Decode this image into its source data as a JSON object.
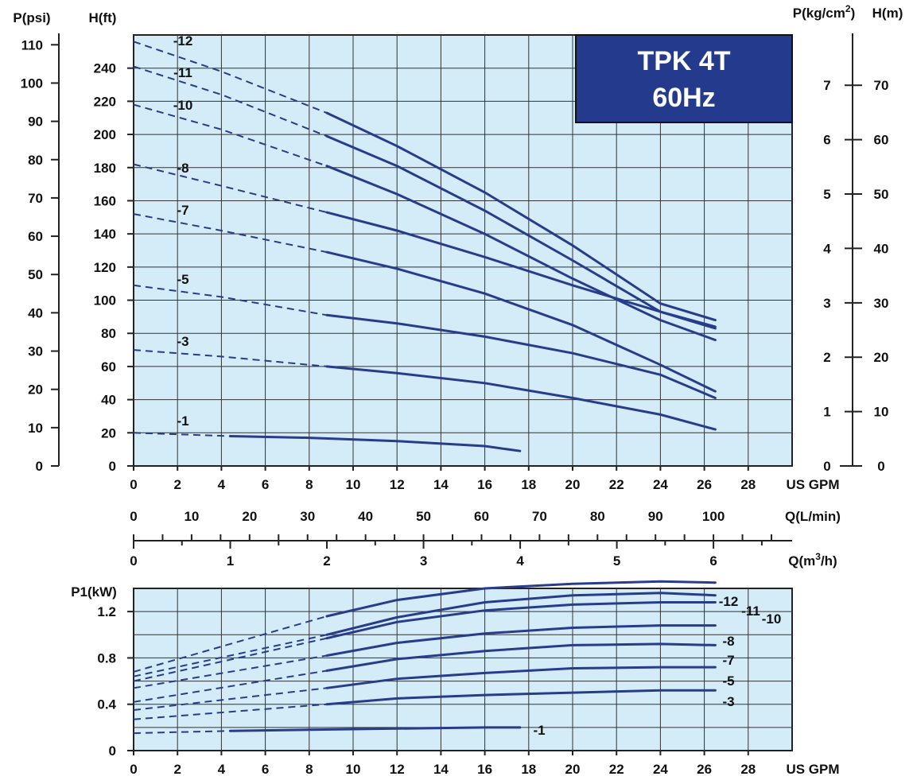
{
  "chart_data": [
    {
      "type": "line",
      "title": "TPK 4T 60Hz",
      "title_lines": [
        "TPK 4T",
        "60Hz"
      ],
      "colors": {
        "curve": "#283c8c",
        "plot_bg": "#d3ecf8",
        "title_box": "#233a8d",
        "title_text": "#ffffff"
      },
      "grid": true,
      "xlim": [
        0,
        30
      ],
      "ylim": [
        0,
        260
      ],
      "x_axes": [
        {
          "label": "US GPM",
          "ticks": [
            0,
            2,
            4,
            6,
            8,
            10,
            12,
            14,
            16,
            18,
            20,
            22,
            24,
            26,
            28
          ]
        },
        {
          "label": "Q(L/min)",
          "ticks": [
            0,
            10,
            20,
            30,
            40,
            50,
            60,
            70,
            80,
            90,
            100
          ]
        },
        {
          "label_main": "Q(m",
          "label_sup": "3",
          "label_end": "/h)",
          "ticks": [
            0,
            1,
            2,
            3,
            4,
            5,
            6
          ]
        }
      ],
      "y_axes": [
        {
          "label": "P(psi)",
          "ticks": [
            0,
            10,
            20,
            30,
            40,
            50,
            60,
            70,
            80,
            90,
            100,
            110
          ]
        },
        {
          "label": "H(ft)",
          "ticks": [
            0,
            20,
            40,
            60,
            80,
            100,
            120,
            140,
            160,
            180,
            200,
            220,
            240
          ]
        },
        {
          "label_main": "P(kg/cm",
          "label_sup": "2",
          "label_end": ")",
          "ticks": [
            0,
            1,
            2,
            3,
            4,
            5,
            6,
            7
          ]
        },
        {
          "label": "H(m)",
          "ticks": [
            0,
            10,
            20,
            30,
            40,
            50,
            60,
            70
          ]
        }
      ],
      "series": [
        {
          "name": "-12",
          "dashed_until": 8.8,
          "x": [
            0,
            4,
            8.8,
            12,
            16,
            20,
            24,
            26.5
          ],
          "y": [
            256,
            238,
            213,
            193,
            165,
            133,
            98,
            88
          ]
        },
        {
          "name": "-11",
          "dashed_until": 8.8,
          "x": [
            0,
            4,
            8.8,
            12,
            16,
            20,
            24,
            26.5
          ],
          "y": [
            241,
            224,
            199,
            181,
            154,
            124,
            93,
            83
          ]
        },
        {
          "name": "-10",
          "dashed_until": 8.8,
          "x": [
            0,
            4,
            8.8,
            12,
            16,
            20,
            24,
            26.5
          ],
          "y": [
            218,
            203,
            181,
            164,
            140,
            113,
            88,
            76
          ]
        },
        {
          "name": "-8",
          "dashed_until": 8.8,
          "x": [
            0,
            4,
            8.8,
            12,
            16,
            20,
            24,
            26.5
          ],
          "y": [
            182,
            169,
            153,
            142,
            126,
            109,
            93,
            84
          ]
        },
        {
          "name": "-7",
          "dashed_until": 8.8,
          "x": [
            0,
            4,
            8.8,
            12,
            16,
            20,
            24,
            26.5
          ],
          "y": [
            152,
            142,
            129,
            119,
            104,
            85,
            61,
            45
          ]
        },
        {
          "name": "-5",
          "dashed_until": 8.8,
          "x": [
            0,
            4,
            8.8,
            12,
            16,
            20,
            24,
            26.5
          ],
          "y": [
            109,
            102,
            91,
            86,
            78,
            68,
            55,
            41
          ]
        },
        {
          "name": "-3",
          "dashed_until": 8.8,
          "x": [
            0,
            4,
            8.8,
            12,
            16,
            20,
            24,
            26.5
          ],
          "y": [
            70,
            66,
            60,
            56,
            50,
            41,
            31,
            22
          ]
        },
        {
          "name": "-1",
          "dashed_until": 4.4,
          "x": [
            0,
            4.4,
            8,
            12,
            16,
            17.6
          ],
          "y": [
            20,
            18,
            17,
            15,
            12,
            9
          ]
        }
      ]
    },
    {
      "type": "line",
      "ylabel": "P1(kW)",
      "xlabel": "US GPM",
      "grid": true,
      "xlim": [
        0,
        30
      ],
      "ylim": [
        0,
        1.4
      ],
      "xticks": [
        0,
        2,
        4,
        6,
        8,
        10,
        12,
        14,
        16,
        18,
        20,
        22,
        24,
        26,
        28
      ],
      "yticks": [
        0,
        0.4,
        0.8,
        1.2
      ],
      "ytick_labels": [
        "0",
        "0.4",
        "0.8",
        "1.2"
      ],
      "series": [
        {
          "name": "-12",
          "dashed_until": 8.8,
          "x": [
            0,
            8.8,
            12,
            16,
            20,
            24,
            26.5
          ],
          "y": [
            0.68,
            1.16,
            1.3,
            1.4,
            1.44,
            1.46,
            1.45
          ]
        },
        {
          "name": "-11",
          "dashed_until": 8.8,
          "x": [
            0,
            8.8,
            12,
            16,
            20,
            24,
            26.5
          ],
          "y": [
            0.64,
            1.0,
            1.15,
            1.28,
            1.34,
            1.36,
            1.34
          ]
        },
        {
          "name": "-10",
          "dashed_until": 8.8,
          "x": [
            0,
            8.8,
            12,
            16,
            20,
            24,
            26.5
          ],
          "y": [
            0.6,
            0.97,
            1.11,
            1.21,
            1.26,
            1.28,
            1.28
          ]
        },
        {
          "name": "-8",
          "dashed_until": 8.8,
          "x": [
            0,
            8.8,
            12,
            16,
            20,
            24,
            26.5
          ],
          "y": [
            0.54,
            0.82,
            0.93,
            1.01,
            1.06,
            1.08,
            1.08
          ]
        },
        {
          "name": "-7",
          "dashed_until": 8.8,
          "x": [
            0,
            8.8,
            12,
            16,
            20,
            24,
            26.5
          ],
          "y": [
            0.42,
            0.69,
            0.79,
            0.86,
            0.91,
            0.92,
            0.91
          ]
        },
        {
          "name": "-5",
          "dashed_until": 8.8,
          "x": [
            0,
            8.8,
            12,
            16,
            20,
            24,
            26.5
          ],
          "y": [
            0.35,
            0.54,
            0.62,
            0.67,
            0.71,
            0.72,
            0.72
          ]
        },
        {
          "name": "-3",
          "dashed_until": 8.8,
          "x": [
            0,
            8.8,
            12,
            16,
            20,
            24,
            26.5
          ],
          "y": [
            0.27,
            0.4,
            0.45,
            0.48,
            0.5,
            0.52,
            0.52
          ]
        },
        {
          "name": "-1",
          "dashed_until": 4.4,
          "x": [
            0,
            4.4,
            8,
            12,
            16,
            17.6
          ],
          "y": [
            0.15,
            0.17,
            0.18,
            0.19,
            0.2,
            0.2
          ]
        }
      ],
      "side_labels": [
        "-12",
        "-11",
        "-10",
        "-8",
        "-7",
        "-5",
        "-3",
        "-1"
      ]
    }
  ]
}
